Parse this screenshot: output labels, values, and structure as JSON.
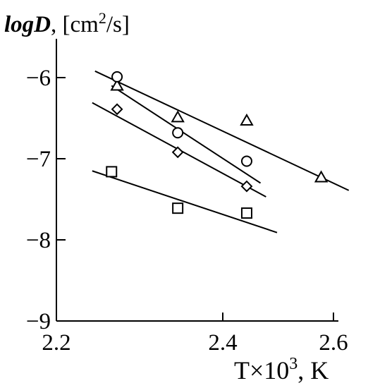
{
  "chart_data": {
    "type": "scatter",
    "title": "",
    "ylabel_main": "logD",
    "ylabel_unit": ", [cm",
    "ylabel_sup": "2",
    "ylabel_tail": "/s]",
    "xlabel_main": "T×10",
    "xlabel_sup": "3",
    "xlabel_tail": ", K",
    "xlim": [
      2.2,
      2.8
    ],
    "ylim": [
      -9,
      -5.4
    ],
    "x_ticks": [
      2.2,
      2.4,
      2.6
    ],
    "x_tick_labels": [
      "2.2",
      "2.4",
      "2.6"
    ],
    "y_ticks": [
      -6,
      -7,
      -8,
      -9
    ],
    "y_tick_labels": [
      "−6",
      "−7",
      "−8",
      "−9"
    ],
    "grid": false,
    "series": [
      {
        "marker": "triangle",
        "points": [
          [
            2.31,
            -6.1
          ],
          [
            2.42,
            -6.49
          ],
          [
            2.545,
            -6.53
          ],
          [
            2.68,
            -7.23
          ]
        ],
        "fit": [
          [
            2.27,
            -5.92
          ],
          [
            2.73,
            -7.39
          ]
        ]
      },
      {
        "marker": "circle",
        "points": [
          [
            2.31,
            -5.99
          ],
          [
            2.42,
            -6.68
          ],
          [
            2.545,
            -7.03
          ]
        ],
        "fit": [
          [
            2.3,
            -6.1
          ],
          [
            2.57,
            -7.3
          ]
        ]
      },
      {
        "marker": "diamond",
        "points": [
          [
            2.31,
            -6.39
          ],
          [
            2.42,
            -6.92
          ],
          [
            2.545,
            -7.34
          ]
        ],
        "fit": [
          [
            2.265,
            -6.31
          ],
          [
            2.58,
            -7.47
          ]
        ]
      },
      {
        "marker": "square",
        "points": [
          [
            2.3,
            -7.16
          ],
          [
            2.42,
            -7.61
          ],
          [
            2.545,
            -7.67
          ]
        ],
        "fit": [
          [
            2.265,
            -7.15
          ],
          [
            2.6,
            -7.91
          ]
        ]
      }
    ]
  }
}
